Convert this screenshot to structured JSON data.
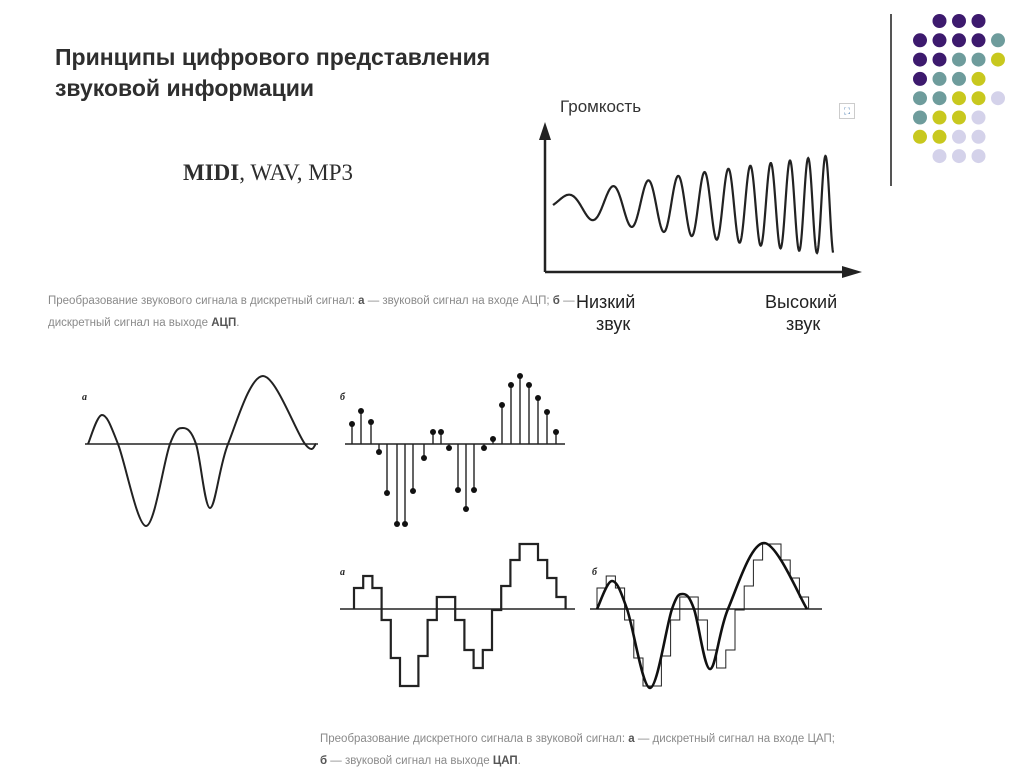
{
  "slide": {
    "title_line1": "Принципы цифрового представления",
    "title_line2": "звуковой информации",
    "formats": {
      "midi": "MIDI",
      "sep1": ", ",
      "wav": "WAV",
      "sep2": ", ",
      "mp3": "MP3"
    }
  },
  "loudness_chart": {
    "y_title": "Громкость",
    "low_line1": "Низкий",
    "low_line2": "звук",
    "high_line1": "Высокий",
    "high_line2": "звук"
  },
  "adc_caption": {
    "t1": "Преобразование звукового сигнала в дискретный сигнал: ",
    "a": "а",
    "t2": " — звуковой сигнал на входе АЦП; ",
    "b": "б",
    "t3": " — дискретный сигнал на выходе ",
    "end": "АЦП",
    "dot": ".",
    "panel_a": "а",
    "panel_b": "б"
  },
  "dac_caption": {
    "t1": "Преобразование дискретного сигнала в звуковой сигнал: ",
    "a": "а",
    "t2": " — дискретный сигнал на входе ЦАП; ",
    "b": "б",
    "t3": " — звуковой сигнал на выходе ",
    "end": "ЦАП",
    "dot": ".",
    "panel_a": "а",
    "panel_b": "б"
  },
  "decor": {
    "colors": {
      "purple": "#3d1a6e",
      "teal": "#6e9c9c",
      "lime": "#c8c81e",
      "lavender": "#d4d2ea"
    }
  }
}
